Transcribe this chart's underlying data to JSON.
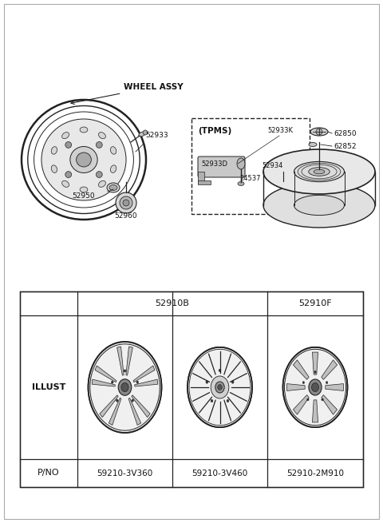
{
  "bg_color": "#ffffff",
  "lc": "#222222",
  "tc": "#111111",
  "wheel_assy_label": "WHEEL ASSY",
  "tpms_label": "(TPMS)",
  "p52933": "52933",
  "p52950": "52950",
  "p52960": "52960",
  "p62850": "62850",
  "p62852": "62852",
  "p52933K": "52933K",
  "p52933D": "52933D",
  "p52934": "52934",
  "p24537": "24537",
  "col_header_B": "52910B",
  "col_header_F": "52910F",
  "row_illust": "ILLUST",
  "row_pno": "P/NO",
  "pno_1": "59210-3V360",
  "pno_2": "59210-3V460",
  "pno_3": "52910-2M910"
}
